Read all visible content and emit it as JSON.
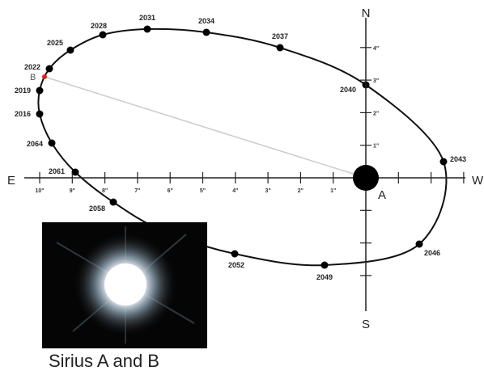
{
  "compass": {
    "north": "N",
    "south": "S",
    "east": "E",
    "west": "W"
  },
  "stars": {
    "primary": "A",
    "companion": "B"
  },
  "orbit_years": [
    "2031",
    "2034",
    "2037",
    "2040",
    "2043",
    "2046",
    "2049",
    "2052",
    "2058",
    "2061",
    "2064",
    "2016",
    "2019",
    "2022",
    "2025",
    "2028"
  ],
  "scale_x_labels": [
    "1\"",
    "2\"",
    "3\"",
    "4\"",
    "5\"",
    "6\"",
    "7\"",
    "8\"",
    "9\"",
    "10\""
  ],
  "scale_y_labels": [
    "1\"",
    "2\"",
    "3\"",
    "4\""
  ],
  "caption": "Sirius A and B"
}
